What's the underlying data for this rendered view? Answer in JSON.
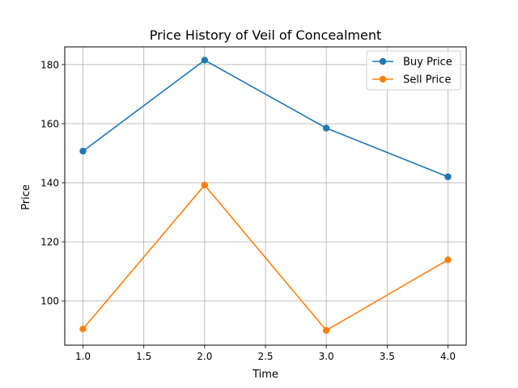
{
  "chart_data": {
    "type": "line",
    "title": "Price History of Veil of Concealment",
    "xlabel": "Time",
    "ylabel": "Price",
    "x": [
      1.0,
      2.0,
      3.0,
      4.0
    ],
    "xlim": [
      0.85,
      4.15
    ],
    "ylim": [
      85.0,
      186.0
    ],
    "xticks": [
      1.0,
      1.5,
      2.0,
      2.5,
      3.0,
      3.5,
      4.0
    ],
    "xtick_labels": [
      "1.0",
      "1.5",
      "2.0",
      "2.5",
      "3.0",
      "3.5",
      "4.0"
    ],
    "yticks": [
      100,
      120,
      140,
      160,
      180
    ],
    "ytick_labels": [
      "100",
      "120",
      "140",
      "160",
      "180"
    ],
    "grid": true,
    "legend_position": "upper right",
    "series": [
      {
        "name": "Buy Price",
        "color": "#1f77b4",
        "values": [
          150.7,
          181.5,
          158.5,
          142.0
        ]
      },
      {
        "name": "Sell Price",
        "color": "#ff7f0e",
        "values": [
          90.5,
          139.2,
          90.0,
          113.9
        ]
      }
    ]
  }
}
